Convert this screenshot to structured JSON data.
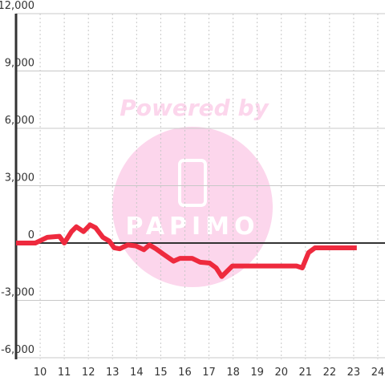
{
  "chart_data": {
    "type": "line",
    "annotations": [
      "Powered by",
      "PAPIMO"
    ],
    "x": [
      9,
      9.8,
      10.3,
      10.8,
      11.0,
      11.3,
      11.5,
      11.8,
      12.07,
      12.3,
      12.6,
      12.87,
      13.07,
      13.3,
      13.63,
      13.97,
      14.3,
      14.53,
      14.8,
      15.13,
      15.53,
      15.8,
      16.3,
      16.63,
      17.03,
      17.3,
      17.53,
      17.97,
      20.63,
      20.87,
      21.13,
      21.4,
      23.13
    ],
    "series": [
      {
        "color": "#ee2a3e",
        "values": [
          0,
          0,
          300,
          350,
          0,
          600,
          850,
          600,
          950,
          800,
          300,
          100,
          -250,
          -300,
          -100,
          -150,
          -350,
          -100,
          -300,
          -600,
          -950,
          -800,
          -800,
          -1000,
          -1050,
          -1300,
          -1750,
          -1200,
          -1200,
          -1300,
          -500,
          -250,
          -250
        ]
      }
    ],
    "xlim": [
      9,
      24.3
    ],
    "xticks": [
      10,
      11,
      12,
      13,
      14,
      15,
      16,
      17,
      18,
      19,
      20,
      21,
      22,
      23,
      24
    ],
    "ylim": [
      -6000,
      12000
    ],
    "yticks": [
      {
        "value": 12000,
        "label": "12,000"
      },
      {
        "value": 9000,
        "label": "9,000"
      },
      {
        "value": 6000,
        "label": "6,000"
      },
      {
        "value": 3000,
        "label": "3,000"
      },
      0,
      {
        "value": -3000,
        "label": "-3,000"
      },
      {
        "value": -6000,
        "label": "-6,000"
      }
    ],
    "grid": true
  }
}
